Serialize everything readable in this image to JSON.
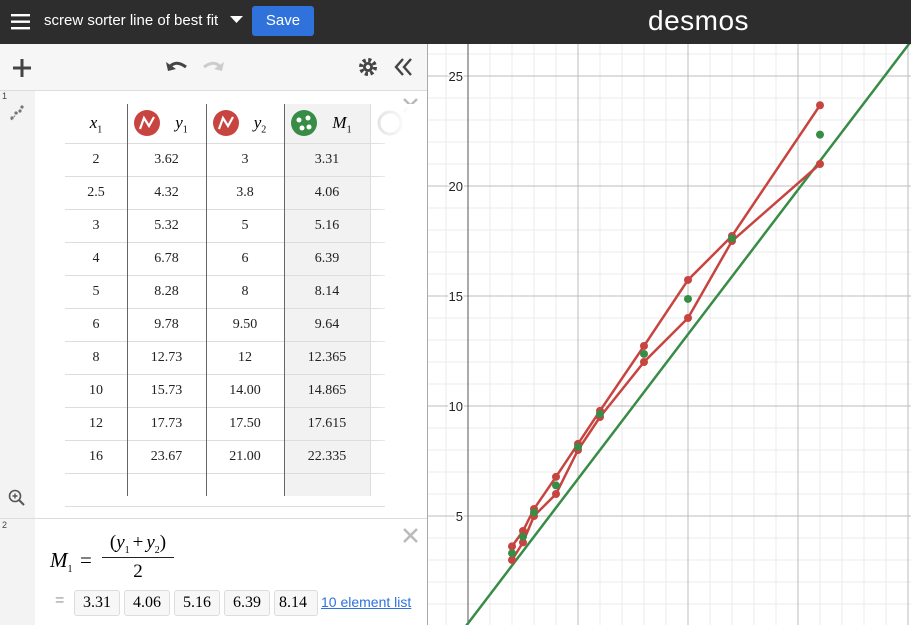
{
  "header": {
    "title": "screw sorter line of best fit",
    "save": "Save",
    "logo": "desmos"
  },
  "expressions": [
    {
      "number": "1",
      "table": {
        "columns": [
          {
            "name": "x",
            "sub": "1"
          },
          {
            "name": "y",
            "sub": "1"
          },
          {
            "name": "y",
            "sub": "2"
          },
          {
            "name": "M",
            "sub": "1"
          }
        ],
        "rows": [
          [
            "2",
            "3.62",
            "3",
            "3.31"
          ],
          [
            "2.5",
            "4.32",
            "3.8",
            "4.06"
          ],
          [
            "3",
            "5.32",
            "5",
            "5.16"
          ],
          [
            "4",
            "6.78",
            "6",
            "6.39"
          ],
          [
            "5",
            "8.28",
            "8",
            "8.14"
          ],
          [
            "6",
            "9.78",
            "9.50",
            "9.64"
          ],
          [
            "8",
            "12.73",
            "12",
            "12.365"
          ],
          [
            "10",
            "15.73",
            "14.00",
            "14.865"
          ],
          [
            "12",
            "17.73",
            "17.50",
            "17.615"
          ],
          [
            "16",
            "23.67",
            "21.00",
            "22.335"
          ]
        ]
      }
    },
    {
      "number": "2",
      "formula": {
        "lhs": "M",
        "lhs_sub": "1",
        "equals": "=",
        "numerator": [
          "(",
          "y",
          "1",
          "+",
          "y",
          "2",
          ")"
        ],
        "denominator": "2"
      },
      "result": {
        "equals": "=",
        "items": [
          "3.31",
          "4.06",
          "5.16",
          "6.39",
          "8.14"
        ],
        "link": "10 element list"
      }
    }
  ],
  "graph": {
    "yticks": [
      5,
      10,
      15,
      20,
      25
    ]
  }
}
